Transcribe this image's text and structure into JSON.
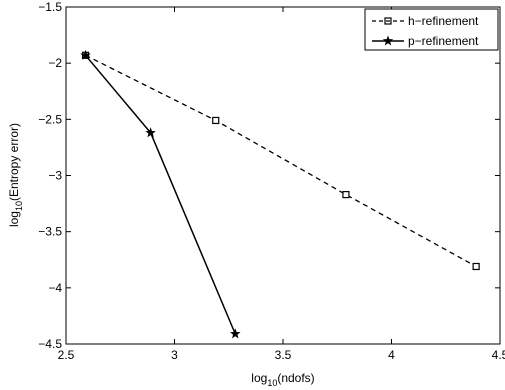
{
  "chart_data": {
    "type": "line",
    "title": "",
    "xlabel": "log",
    "xlabel_sub": "10",
    "xlabel_rest": "(ndofs)",
    "ylabel": "log",
    "ylabel_sub": "10",
    "ylabel_rest": "(Entropy error)",
    "xlim": [
      2.5,
      4.5
    ],
    "ylim": [
      -4.5,
      -1.5
    ],
    "xticks": [
      2.5,
      3,
      3.5,
      4,
      4.5
    ],
    "xtick_labels": [
      "2.5",
      "3",
      "3.5",
      "4",
      "4.5"
    ],
    "yticks": [
      -4.5,
      -4,
      -3.5,
      -3,
      -2.5,
      -2,
      -1.5
    ],
    "ytick_labels": [
      "−4.5",
      "−4",
      "−3.5",
      "−3",
      "−2.5",
      "−2",
      "−1.5"
    ],
    "grid": false,
    "legend_position": "top-right",
    "series": [
      {
        "name": "h−refinement",
        "line_style": "dashed",
        "marker": "square",
        "color": "#000000",
        "x": [
          2.59,
          3.19,
          3.79,
          4.39
        ],
        "y": [
          -1.93,
          -2.51,
          -3.17,
          -3.81
        ]
      },
      {
        "name": "p−refinement",
        "line_style": "solid",
        "marker": "star",
        "color": "#000000",
        "x": [
          2.59,
          2.89,
          3.28
        ],
        "y": [
          -1.93,
          -2.62,
          -4.41
        ]
      }
    ]
  }
}
